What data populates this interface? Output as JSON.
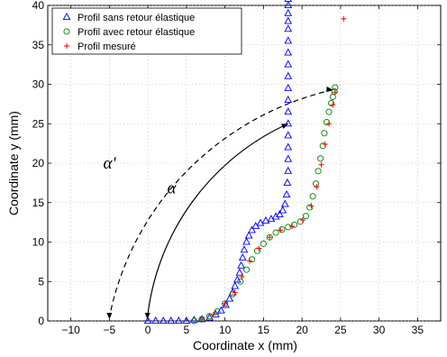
{
  "chart_data": {
    "type": "scatter",
    "title": "",
    "xlabel": "Coordinate x (mm)",
    "ylabel": "Coordinate y (mm)",
    "xlim": [
      -13,
      38
    ],
    "ylim": [
      0,
      40
    ],
    "xticks": [
      -10,
      -5,
      0,
      5,
      10,
      15,
      20,
      25,
      30,
      35
    ],
    "yticks": [
      0,
      5,
      10,
      15,
      20,
      25,
      30,
      35,
      40
    ],
    "grid": true,
    "legend_position": "top-left",
    "series": [
      {
        "name": "Profil sans retour élastique",
        "marker": "triangle",
        "color": "#0000ff",
        "x": [
          0,
          1,
          2,
          3,
          4,
          5,
          6,
          7,
          8,
          8.8,
          9.5,
          10.1,
          10.6,
          11,
          11.3,
          11.6,
          11.9,
          12.1,
          12.3,
          12.5,
          12.8,
          13.1,
          13.5,
          14,
          14.6,
          15.3,
          16,
          16.6,
          17.1,
          17.5,
          17.8,
          18,
          18.1,
          18.2,
          18.2,
          18.2,
          18.2,
          18.2,
          18.2,
          18.2,
          18.2,
          18.2,
          18.2,
          18.2,
          18.2,
          18.2,
          18.2,
          18.2,
          18.2,
          18.2
        ],
        "y": [
          0,
          0,
          0,
          0,
          0,
          0,
          0.1,
          0.2,
          0.4,
          0.8,
          1.3,
          2,
          2.8,
          3.6,
          4.4,
          5.2,
          6.1,
          7,
          8,
          9,
          10,
          10.8,
          11.5,
          12,
          12.4,
          12.7,
          12.9,
          13.2,
          13.5,
          14,
          14.8,
          16,
          17.5,
          19,
          20.5,
          22,
          23.5,
          25,
          26.5,
          28,
          29.5,
          31,
          32.5,
          34,
          35.5,
          37,
          38,
          39,
          40,
          40.8
        ]
      },
      {
        "name": "Profil avec retour élastique",
        "marker": "circle",
        "color": "#008000",
        "x": [
          6,
          7,
          8,
          9,
          10,
          11,
          12,
          12.8,
          13.5,
          14.2,
          15,
          15.8,
          16.6,
          17.4,
          18.2,
          19,
          19.8,
          20.5,
          21,
          21.4,
          21.8,
          22.1,
          22.4,
          22.7,
          22.9,
          23.2,
          23.5,
          23.8,
          24,
          24.2,
          24.3
        ],
        "y": [
          0,
          0.2,
          0.6,
          1.2,
          2.2,
          3.4,
          5,
          6.5,
          7.8,
          8.9,
          9.8,
          10.6,
          11.2,
          11.6,
          11.9,
          12.2,
          12.6,
          13.3,
          14.4,
          15.8,
          17.4,
          19,
          20.6,
          22.2,
          23.8,
          25.2,
          26.5,
          27.6,
          28.4,
          29.1,
          29.6
        ]
      },
      {
        "name": "Profil mesuré",
        "marker": "plus",
        "color": "#ff0000",
        "x": [
          7,
          8.5,
          10,
          11.3,
          12.2,
          13.2,
          14.4,
          15.8,
          17.2,
          18.7,
          20.1,
          21.2,
          21.9,
          22.5,
          23,
          23.5,
          24,
          24.3,
          25.4
        ],
        "y": [
          0.2,
          0.8,
          2.2,
          3.6,
          5.6,
          7.6,
          9.2,
          10.6,
          11.5,
          12,
          12.8,
          14.6,
          17,
          19.8,
          22.4,
          25,
          27.4,
          29,
          38.3
        ]
      }
    ],
    "annotations": [
      {
        "text": "α'",
        "x": -5.8,
        "y": 19.3
      },
      {
        "text": "α",
        "x": 2.5,
        "y": 16.2
      }
    ]
  }
}
